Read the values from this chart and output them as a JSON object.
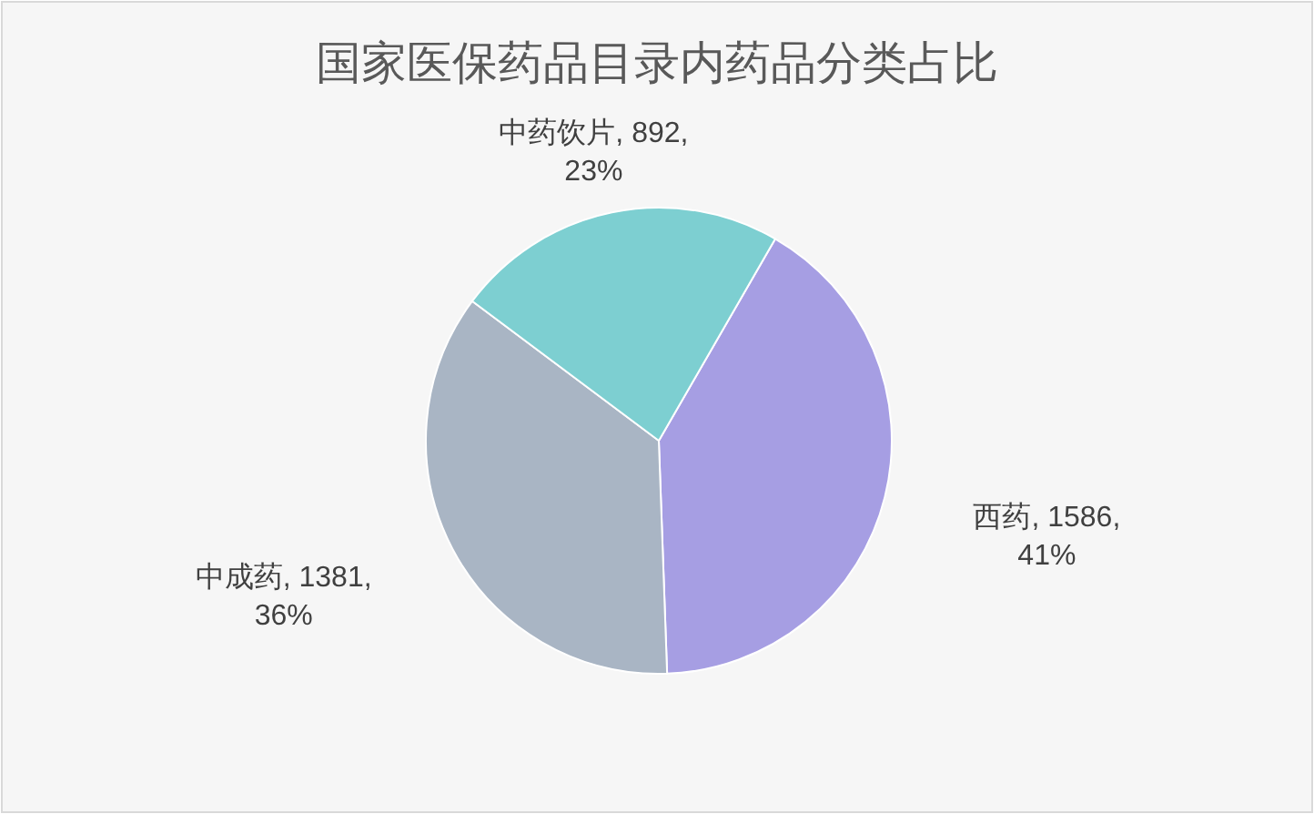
{
  "chart_data": {
    "type": "pie",
    "title": "国家医保药品目录内药品分类占比",
    "categories": [
      "西药",
      "中成药",
      "中药饮片"
    ],
    "values": [
      1586,
      1381,
      892
    ],
    "colors": [
      "#a69ee3",
      "#a9b5c4",
      "#7dcfd1"
    ],
    "value_labels": [
      ", 1586,\n41%",
      ", 1381,\n36%",
      ", 892,\n23%"
    ],
    "legend": false
  }
}
